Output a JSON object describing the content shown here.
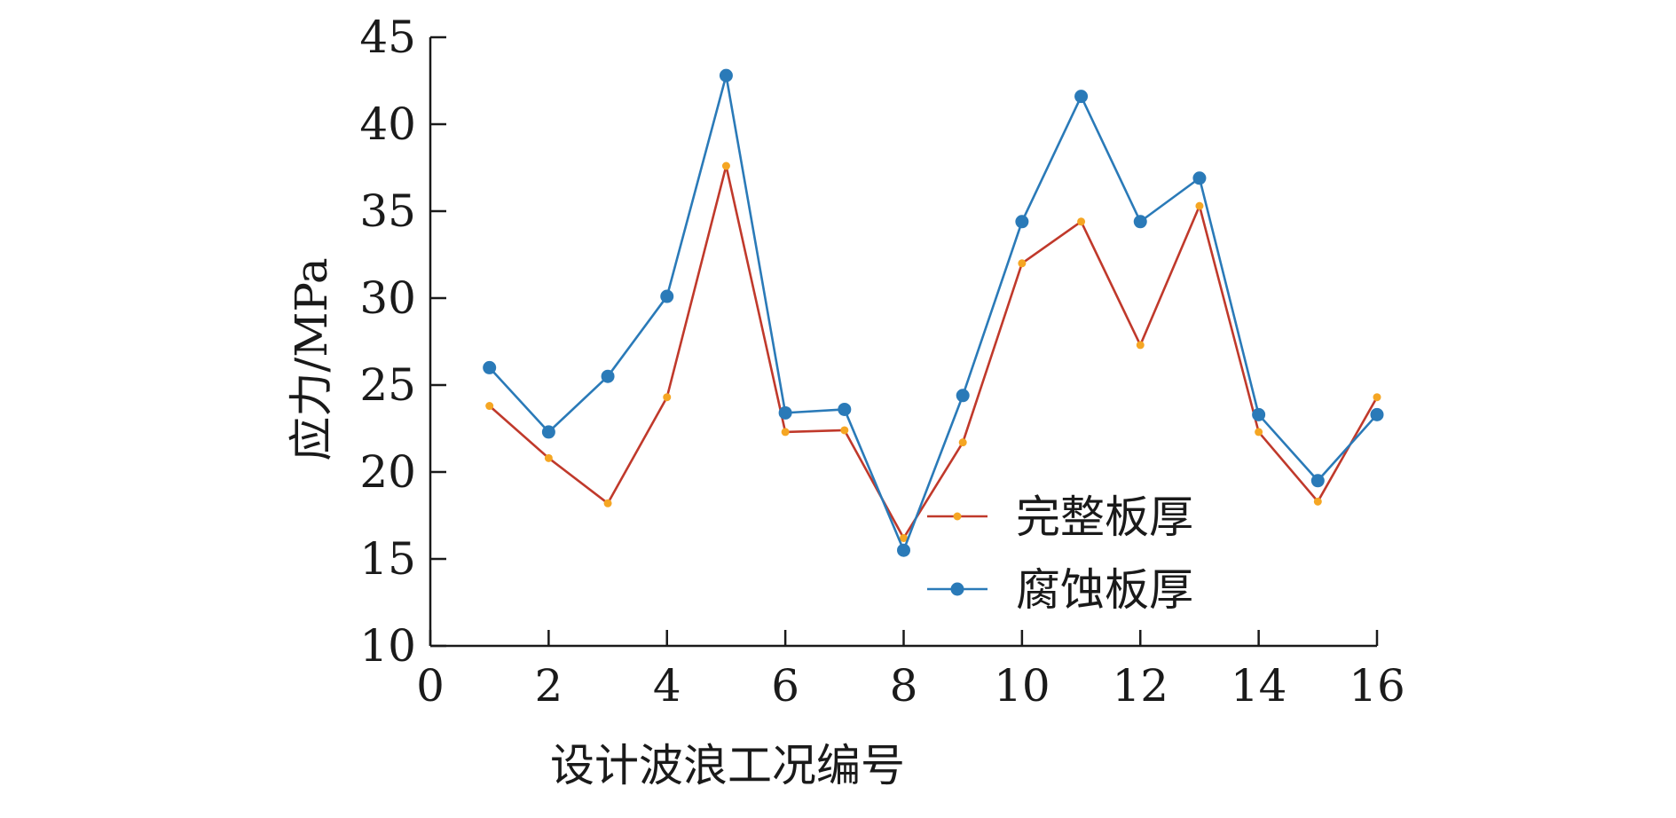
{
  "chart_data": {
    "type": "line",
    "xlabel": "设计波浪工况编号",
    "ylabel": "应力/MPa",
    "xlim": [
      0,
      16
    ],
    "ylim": [
      10,
      45
    ],
    "xticks": [
      0,
      2,
      4,
      6,
      8,
      10,
      12,
      14,
      16
    ],
    "yticks": [
      10,
      15,
      20,
      25,
      30,
      35,
      40,
      45
    ],
    "grid": false,
    "legend_position": "center-right",
    "x": [
      1,
      2,
      3,
      4,
      5,
      6,
      7,
      8,
      9,
      10,
      11,
      12,
      13,
      14,
      15,
      16
    ],
    "series": [
      {
        "name": "完整板厚",
        "color": "#c0392b",
        "marker_color": "#f5a623",
        "marker": "small-dot",
        "values": [
          23.8,
          20.8,
          18.2,
          24.3,
          37.6,
          22.3,
          22.4,
          16.2,
          21.7,
          32.0,
          34.4,
          27.3,
          35.3,
          22.3,
          18.3,
          24.3
        ]
      },
      {
        "name": "腐蚀板厚",
        "color": "#2a7ab8",
        "marker_color": "#2a7ab8",
        "marker": "circle",
        "values": [
          26.0,
          22.3,
          25.5,
          30.1,
          42.8,
          23.4,
          23.6,
          15.5,
          24.4,
          34.4,
          41.6,
          34.4,
          36.9,
          23.3,
          19.5,
          23.3
        ]
      }
    ]
  }
}
